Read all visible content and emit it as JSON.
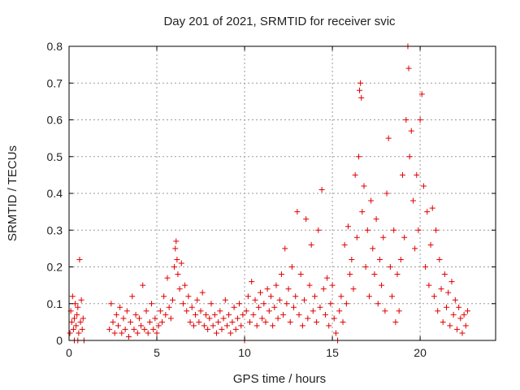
{
  "chart_data": {
    "type": "scatter",
    "title": "Day 201 of 2021, SRMTID for receiver svic",
    "xlabel": "GPS time / hours",
    "ylabel": "SRMTID / TECUs",
    "xlim": [
      0,
      24.3
    ],
    "ylim": [
      0,
      0.8
    ],
    "xticks": [
      0,
      5,
      10,
      15,
      20
    ],
    "yticks": [
      0,
      0.1,
      0.2,
      0.3,
      0.4,
      0.5,
      0.6,
      0.7,
      0.8
    ],
    "xtick_labels": [
      "0",
      "5",
      "10",
      "15",
      "20"
    ],
    "ytick_labels": [
      "0",
      "0.1",
      "0.2",
      "0.3",
      "0.4",
      "0.5",
      "0.6",
      "0.7",
      "0.8"
    ],
    "grid": true,
    "marker": "+",
    "color": "#e00000",
    "series": [
      {
        "name": "SRMTID",
        "points": [
          [
            0.05,
            0.02
          ],
          [
            0.1,
            0.08
          ],
          [
            0.15,
            0.05
          ],
          [
            0.2,
            0.12
          ],
          [
            0.25,
            0.03
          ],
          [
            0.3,
            0.06
          ],
          [
            0.35,
            0.1
          ],
          [
            0.4,
            0.04
          ],
          [
            0.45,
            0.07
          ],
          [
            0.5,
            0.09
          ],
          [
            0.55,
            0.02
          ],
          [
            0.6,
            0.22
          ],
          [
            0.65,
            0.05
          ],
          [
            0.7,
            0.11
          ],
          [
            0.75,
            0.03
          ],
          [
            0.8,
            0.06
          ],
          [
            0.85,
            0.0
          ],
          [
            0.3,
            0.0
          ],
          [
            0.5,
            0.0
          ],
          [
            2.3,
            0.03
          ],
          [
            2.4,
            0.1
          ],
          [
            2.5,
            0.05
          ],
          [
            2.6,
            0.02
          ],
          [
            2.7,
            0.07
          ],
          [
            2.8,
            0.04
          ],
          [
            2.9,
            0.09
          ],
          [
            3.0,
            0.02
          ],
          [
            3.1,
            0.06
          ],
          [
            3.2,
            0.03
          ],
          [
            3.3,
            0.08
          ],
          [
            3.4,
            0.01
          ],
          [
            3.5,
            0.05
          ],
          [
            3.6,
            0.12
          ],
          [
            3.7,
            0.03
          ],
          [
            3.8,
            0.07
          ],
          [
            3.9,
            0.02
          ],
          [
            4.0,
            0.06
          ],
          [
            4.1,
            0.04
          ],
          [
            4.2,
            0.15
          ],
          [
            4.3,
            0.03
          ],
          [
            4.4,
            0.08
          ],
          [
            4.5,
            0.02
          ],
          [
            4.6,
            0.05
          ],
          [
            4.7,
            0.1
          ],
          [
            4.8,
            0.03
          ],
          [
            4.9,
            0.06
          ],
          [
            5.0,
            0.02
          ],
          [
            5.1,
            0.04
          ],
          [
            5.2,
            0.08
          ],
          [
            5.3,
            0.05
          ],
          [
            5.4,
            0.12
          ],
          [
            5.5,
            0.07
          ],
          [
            5.6,
            0.17
          ],
          [
            5.7,
            0.09
          ],
          [
            5.8,
            0.06
          ],
          [
            5.9,
            0.11
          ],
          [
            6.0,
            0.2
          ],
          [
            6.05,
            0.25
          ],
          [
            6.1,
            0.27
          ],
          [
            6.15,
            0.22
          ],
          [
            6.2,
            0.18
          ],
          [
            6.3,
            0.14
          ],
          [
            6.4,
            0.21
          ],
          [
            6.5,
            0.1
          ],
          [
            6.6,
            0.15
          ],
          [
            6.7,
            0.08
          ],
          [
            6.8,
            0.12
          ],
          [
            6.9,
            0.05
          ],
          [
            7.0,
            0.09
          ],
          [
            7.1,
            0.04
          ],
          [
            7.2,
            0.07
          ],
          [
            7.3,
            0.11
          ],
          [
            7.4,
            0.05
          ],
          [
            7.5,
            0.08
          ],
          [
            7.6,
            0.13
          ],
          [
            7.7,
            0.04
          ],
          [
            7.8,
            0.07
          ],
          [
            7.9,
            0.03
          ],
          [
            8.0,
            0.06
          ],
          [
            8.1,
            0.1
          ],
          [
            8.2,
            0.04
          ],
          [
            8.3,
            0.07
          ],
          [
            8.4,
            0.02
          ],
          [
            8.5,
            0.05
          ],
          [
            8.6,
            0.08
          ],
          [
            8.7,
            0.03
          ],
          [
            8.8,
            0.06
          ],
          [
            8.9,
            0.11
          ],
          [
            9.0,
            0.04
          ],
          [
            9.1,
            0.07
          ],
          [
            9.2,
            0.02
          ],
          [
            9.3,
            0.05
          ],
          [
            9.4,
            0.09
          ],
          [
            9.5,
            0.03
          ],
          [
            9.6,
            0.06
          ],
          [
            9.7,
            0.1
          ],
          [
            9.8,
            0.04
          ],
          [
            9.9,
            0.07
          ],
          [
            10.0,
            0.0
          ],
          [
            10.1,
            0.08
          ],
          [
            10.2,
            0.12
          ],
          [
            10.3,
            0.05
          ],
          [
            10.4,
            0.16
          ],
          [
            10.5,
            0.07
          ],
          [
            10.6,
            0.11
          ],
          [
            10.7,
            0.04
          ],
          [
            10.8,
            0.09
          ],
          [
            10.9,
            0.13
          ],
          [
            11.0,
            0.06
          ],
          [
            11.1,
            0.1
          ],
          [
            11.2,
            0.05
          ],
          [
            11.3,
            0.14
          ],
          [
            11.4,
            0.08
          ],
          [
            11.5,
            0.12
          ],
          [
            11.6,
            0.04
          ],
          [
            11.7,
            0.09
          ],
          [
            11.8,
            0.15
          ],
          [
            11.9,
            0.06
          ],
          [
            12.0,
            0.11
          ],
          [
            12.1,
            0.18
          ],
          [
            12.2,
            0.07
          ],
          [
            12.3,
            0.25
          ],
          [
            12.4,
            0.1
          ],
          [
            12.5,
            0.14
          ],
          [
            12.6,
            0.05
          ],
          [
            12.7,
            0.2
          ],
          [
            12.8,
            0.09
          ],
          [
            12.9,
            0.12
          ],
          [
            13.0,
            0.35
          ],
          [
            13.1,
            0.07
          ],
          [
            13.2,
            0.18
          ],
          [
            13.3,
            0.04
          ],
          [
            13.4,
            0.11
          ],
          [
            13.5,
            0.33
          ],
          [
            13.6,
            0.06
          ],
          [
            13.7,
            0.15
          ],
          [
            13.8,
            0.26
          ],
          [
            13.9,
            0.08
          ],
          [
            14.0,
            0.12
          ],
          [
            14.1,
            0.05
          ],
          [
            14.2,
            0.3
          ],
          [
            14.3,
            0.09
          ],
          [
            14.4,
            0.41
          ],
          [
            14.5,
            0.14
          ],
          [
            14.6,
            0.07
          ],
          [
            14.7,
            0.17
          ],
          [
            14.8,
            0.04
          ],
          [
            14.9,
            0.1
          ],
          [
            15.0,
            0.15
          ],
          [
            15.1,
            0.06
          ],
          [
            15.2,
            0.02
          ],
          [
            15.3,
            0.0
          ],
          [
            15.4,
            0.08
          ],
          [
            15.5,
            0.12
          ],
          [
            15.6,
            0.05
          ],
          [
            15.7,
            0.26
          ],
          [
            15.8,
            0.1
          ],
          [
            15.9,
            0.31
          ],
          [
            16.0,
            0.18
          ],
          [
            16.1,
            0.22
          ],
          [
            16.2,
            0.14
          ],
          [
            16.3,
            0.45
          ],
          [
            16.4,
            0.28
          ],
          [
            16.5,
            0.5
          ],
          [
            16.55,
            0.68
          ],
          [
            16.6,
            0.7
          ],
          [
            16.65,
            0.66
          ],
          [
            16.7,
            0.35
          ],
          [
            16.8,
            0.42
          ],
          [
            16.9,
            0.2
          ],
          [
            17.0,
            0.3
          ],
          [
            17.1,
            0.12
          ],
          [
            17.2,
            0.38
          ],
          [
            17.3,
            0.25
          ],
          [
            17.4,
            0.18
          ],
          [
            17.5,
            0.33
          ],
          [
            17.6,
            0.1
          ],
          [
            17.7,
            0.22
          ],
          [
            17.8,
            0.15
          ],
          [
            17.9,
            0.28
          ],
          [
            18.0,
            0.08
          ],
          [
            18.1,
            0.4
          ],
          [
            18.2,
            0.55
          ],
          [
            18.3,
            0.2
          ],
          [
            18.4,
            0.12
          ],
          [
            18.5,
            0.3
          ],
          [
            18.6,
            0.05
          ],
          [
            18.7,
            0.18
          ],
          [
            18.8,
            0.08
          ],
          [
            18.9,
            0.22
          ],
          [
            19.0,
            0.45
          ],
          [
            19.1,
            0.28
          ],
          [
            19.2,
            0.6
          ],
          [
            19.3,
            0.8
          ],
          [
            19.35,
            0.74
          ],
          [
            19.4,
            0.5
          ],
          [
            19.5,
            0.57
          ],
          [
            19.6,
            0.38
          ],
          [
            19.7,
            0.25
          ],
          [
            19.8,
            0.45
          ],
          [
            19.9,
            0.3
          ],
          [
            20.0,
            0.6
          ],
          [
            20.1,
            0.67
          ],
          [
            20.2,
            0.42
          ],
          [
            20.3,
            0.2
          ],
          [
            20.4,
            0.35
          ],
          [
            20.5,
            0.15
          ],
          [
            20.6,
            0.26
          ],
          [
            20.7,
            0.36
          ],
          [
            20.8,
            0.12
          ],
          [
            20.9,
            0.3
          ],
          [
            21.0,
            0.08
          ],
          [
            21.1,
            0.22
          ],
          [
            21.2,
            0.14
          ],
          [
            21.3,
            0.05
          ],
          [
            21.4,
            0.18
          ],
          [
            21.5,
            0.09
          ],
          [
            21.6,
            0.13
          ],
          [
            21.7,
            0.04
          ],
          [
            21.8,
            0.16
          ],
          [
            21.9,
            0.07
          ],
          [
            22.0,
            0.11
          ],
          [
            22.1,
            0.03
          ],
          [
            22.2,
            0.09
          ],
          [
            22.3,
            0.06
          ],
          [
            22.4,
            0.02
          ],
          [
            22.5,
            0.07
          ],
          [
            22.6,
            0.04
          ],
          [
            22.7,
            0.08
          ]
        ]
      }
    ]
  }
}
